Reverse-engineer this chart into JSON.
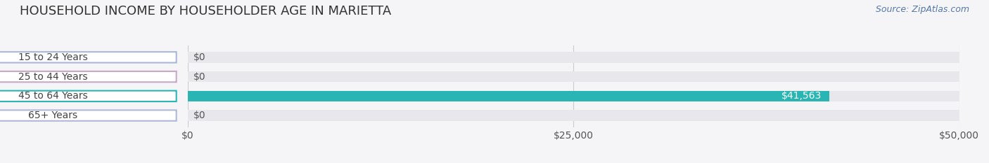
{
  "title": "HOUSEHOLD INCOME BY HOUSEHOLDER AGE IN MARIETTA",
  "source": "Source: ZipAtlas.com",
  "categories": [
    "15 to 24 Years",
    "25 to 44 Years",
    "45 to 64 Years",
    "65+ Years"
  ],
  "values": [
    0,
    0,
    41563,
    0
  ],
  "bar_colors": [
    "#a8b8d8",
    "#c8a8c8",
    "#2ab5b5",
    "#b0b8d8"
  ],
  "bar_bg_color": "#e8e8ec",
  "label_texts": [
    "$0",
    "$0",
    "$41,563",
    "$0"
  ],
  "label_inside": [
    false,
    false,
    true,
    false
  ],
  "xlim": [
    0,
    50000
  ],
  "xticks": [
    0,
    25000,
    50000
  ],
  "xticklabels": [
    "$0",
    "$25,000",
    "$50,000"
  ],
  "background_color": "#f5f5f7",
  "title_fontsize": 13,
  "source_fontsize": 9,
  "tick_fontsize": 10,
  "label_fontsize": 10,
  "bar_height": 0.55,
  "bar_label_color_inside": "#ffffff",
  "bar_label_color_outside": "#555555"
}
